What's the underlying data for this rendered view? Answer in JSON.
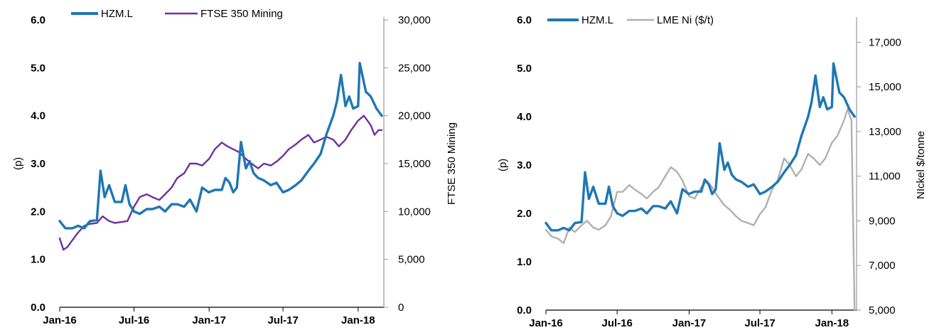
{
  "chart_data": [
    {
      "type": "line",
      "title": "",
      "xlabel": "",
      "ylabel_left": "(p)",
      "ylabel_right": "FTSE 350 Mining",
      "x_ticks": [
        "Jan-16",
        "Jul-16",
        "Jan-17",
        "Jul-17",
        "Jan-18"
      ],
      "y_left_ticks": [
        "0.0",
        "1.0",
        "2.0",
        "3.0",
        "4.0",
        "5.0",
        "6.0"
      ],
      "y_right_ticks": [
        "0",
        "5,000",
        "10,000",
        "15,000",
        "20,000",
        "25,000",
        "30,000"
      ],
      "ylim_left": [
        0,
        6
      ],
      "ylim_right": [
        0,
        30000
      ],
      "legend_position": "top",
      "series": [
        {
          "name": "HZM.L",
          "axis": "left",
          "color": "#1f77b4",
          "points": [
            [
              "2016-01-01",
              1.8
            ],
            [
              "2016-01-15",
              1.65
            ],
            [
              "2016-02-01",
              1.65
            ],
            [
              "2016-02-15",
              1.7
            ],
            [
              "2016-03-01",
              1.65
            ],
            [
              "2016-03-15",
              1.8
            ],
            [
              "2016-04-01",
              1.82
            ],
            [
              "2016-04-10",
              2.85
            ],
            [
              "2016-04-20",
              2.3
            ],
            [
              "2016-05-01",
              2.55
            ],
            [
              "2016-05-15",
              2.2
            ],
            [
              "2016-06-01",
              2.2
            ],
            [
              "2016-06-10",
              2.55
            ],
            [
              "2016-06-20",
              2.15
            ],
            [
              "2016-07-01",
              2.0
            ],
            [
              "2016-07-15",
              1.95
            ],
            [
              "2016-08-01",
              2.05
            ],
            [
              "2016-08-15",
              2.05
            ],
            [
              "2016-09-01",
              2.1
            ],
            [
              "2016-09-15",
              2.0
            ],
            [
              "2016-10-01",
              2.15
            ],
            [
              "2016-10-15",
              2.15
            ],
            [
              "2016-11-01",
              2.1
            ],
            [
              "2016-11-15",
              2.25
            ],
            [
              "2016-12-01",
              2.0
            ],
            [
              "2016-12-15",
              2.5
            ],
            [
              "2016-12-31",
              2.4
            ],
            [
              "2017-01-15",
              2.45
            ],
            [
              "2017-02-01",
              2.45
            ],
            [
              "2017-02-10",
              2.7
            ],
            [
              "2017-02-20",
              2.6
            ],
            [
              "2017-03-01",
              2.4
            ],
            [
              "2017-03-10",
              2.5
            ],
            [
              "2017-03-20",
              3.45
            ],
            [
              "2017-04-01",
              2.9
            ],
            [
              "2017-04-10",
              3.05
            ],
            [
              "2017-04-20",
              2.8
            ],
            [
              "2017-05-01",
              2.7
            ],
            [
              "2017-05-15",
              2.65
            ],
            [
              "2017-06-01",
              2.55
            ],
            [
              "2017-06-15",
              2.6
            ],
            [
              "2017-07-01",
              2.4
            ],
            [
              "2017-07-15",
              2.45
            ],
            [
              "2017-08-01",
              2.55
            ],
            [
              "2017-08-15",
              2.65
            ],
            [
              "2017-09-01",
              2.85
            ],
            [
              "2017-09-15",
              3.0
            ],
            [
              "2017-10-01",
              3.2
            ],
            [
              "2017-10-15",
              3.6
            ],
            [
              "2017-11-01",
              4.0
            ],
            [
              "2017-11-10",
              4.3
            ],
            [
              "2017-11-20",
              4.85
            ],
            [
              "2017-12-01",
              4.2
            ],
            [
              "2017-12-10",
              4.4
            ],
            [
              "2017-12-20",
              4.15
            ],
            [
              "2018-01-01",
              4.2
            ],
            [
              "2018-01-05",
              5.1
            ],
            [
              "2018-01-10",
              4.9
            ],
            [
              "2018-01-20",
              4.5
            ],
            [
              "2018-02-01",
              4.4
            ],
            [
              "2018-02-15",
              4.15
            ],
            [
              "2018-02-28",
              4.0
            ]
          ]
        },
        {
          "name": "FTSE 350 Mining",
          "axis": "right",
          "color": "#7030a0",
          "points": [
            [
              "2016-01-01",
              7200
            ],
            [
              "2016-01-10",
              6000
            ],
            [
              "2016-01-20",
              6300
            ],
            [
              "2016-02-01",
              7000
            ],
            [
              "2016-02-15",
              7800
            ],
            [
              "2016-03-01",
              8500
            ],
            [
              "2016-03-15",
              8700
            ],
            [
              "2016-04-01",
              8800
            ],
            [
              "2016-04-15",
              9500
            ],
            [
              "2016-05-01",
              9000
            ],
            [
              "2016-05-15",
              8800
            ],
            [
              "2016-06-01",
              8900
            ],
            [
              "2016-06-15",
              9000
            ],
            [
              "2016-07-01",
              10500
            ],
            [
              "2016-07-15",
              11500
            ],
            [
              "2016-08-01",
              11800
            ],
            [
              "2016-08-15",
              11500
            ],
            [
              "2016-09-01",
              11200
            ],
            [
              "2016-09-15",
              11800
            ],
            [
              "2016-10-01",
              12500
            ],
            [
              "2016-10-15",
              13500
            ],
            [
              "2016-11-01",
              14000
            ],
            [
              "2016-11-15",
              15000
            ],
            [
              "2016-12-01",
              15000
            ],
            [
              "2016-12-15",
              14800
            ],
            [
              "2017-01-01",
              15500
            ],
            [
              "2017-01-15",
              16500
            ],
            [
              "2017-02-01",
              17200
            ],
            [
              "2017-02-15",
              16800
            ],
            [
              "2017-03-01",
              16500
            ],
            [
              "2017-03-15",
              16200
            ],
            [
              "2017-04-01",
              15500
            ],
            [
              "2017-04-15",
              15000
            ],
            [
              "2017-05-01",
              14500
            ],
            [
              "2017-05-15",
              15000
            ],
            [
              "2017-06-01",
              14800
            ],
            [
              "2017-06-15",
              15200
            ],
            [
              "2017-07-01",
              15800
            ],
            [
              "2017-07-15",
              16500
            ],
            [
              "2017-08-01",
              17000
            ],
            [
              "2017-08-15",
              17500
            ],
            [
              "2017-09-01",
              18000
            ],
            [
              "2017-09-15",
              17200
            ],
            [
              "2017-10-01",
              17500
            ],
            [
              "2017-10-15",
              17800
            ],
            [
              "2017-11-01",
              17500
            ],
            [
              "2017-11-15",
              16800
            ],
            [
              "2017-12-01",
              17500
            ],
            [
              "2017-12-15",
              18500
            ],
            [
              "2018-01-01",
              19500
            ],
            [
              "2018-01-15",
              20000
            ],
            [
              "2018-02-01",
              19000
            ],
            [
              "2018-02-10",
              18000
            ],
            [
              "2018-02-20",
              18500
            ],
            [
              "2018-02-28",
              18500
            ]
          ]
        }
      ]
    },
    {
      "type": "line",
      "title": "",
      "xlabel": "",
      "ylabel_left": "(p)",
      "ylabel_right": "NIckel $/tonne",
      "x_ticks": [
        "Jan-16",
        "Jul-16",
        "Jan-17",
        "Jul-17",
        "Jan-18"
      ],
      "y_left_ticks": [
        "0.0",
        "1.0",
        "2.0",
        "3.0",
        "4.0",
        "5.0",
        "6.0"
      ],
      "y_right_ticks": [
        "5,000",
        "7,000",
        "9,000",
        "11,000",
        "13,000",
        "15,000",
        "17,000"
      ],
      "ylim_left": [
        0,
        6
      ],
      "ylim_right": [
        5000,
        18000
      ],
      "legend_position": "top",
      "series": [
        {
          "name": "HZM.L",
          "axis": "left",
          "color": "#1f77b4",
          "points": [
            [
              "2016-01-01",
              1.8
            ],
            [
              "2016-01-15",
              1.65
            ],
            [
              "2016-02-01",
              1.65
            ],
            [
              "2016-02-15",
              1.7
            ],
            [
              "2016-03-01",
              1.65
            ],
            [
              "2016-03-15",
              1.8
            ],
            [
              "2016-04-01",
              1.82
            ],
            [
              "2016-04-10",
              2.85
            ],
            [
              "2016-04-20",
              2.3
            ],
            [
              "2016-05-01",
              2.55
            ],
            [
              "2016-05-15",
              2.2
            ],
            [
              "2016-06-01",
              2.2
            ],
            [
              "2016-06-10",
              2.55
            ],
            [
              "2016-06-20",
              2.15
            ],
            [
              "2016-07-01",
              2.0
            ],
            [
              "2016-07-15",
              1.95
            ],
            [
              "2016-08-01",
              2.05
            ],
            [
              "2016-08-15",
              2.05
            ],
            [
              "2016-09-01",
              2.1
            ],
            [
              "2016-09-15",
              2.0
            ],
            [
              "2016-10-01",
              2.15
            ],
            [
              "2016-10-15",
              2.15
            ],
            [
              "2016-11-01",
              2.1
            ],
            [
              "2016-11-15",
              2.25
            ],
            [
              "2016-12-01",
              2.0
            ],
            [
              "2016-12-15",
              2.5
            ],
            [
              "2016-12-31",
              2.4
            ],
            [
              "2017-01-15",
              2.45
            ],
            [
              "2017-02-01",
              2.45
            ],
            [
              "2017-02-10",
              2.7
            ],
            [
              "2017-02-20",
              2.6
            ],
            [
              "2017-03-01",
              2.4
            ],
            [
              "2017-03-10",
              2.5
            ],
            [
              "2017-03-20",
              3.45
            ],
            [
              "2017-04-01",
              2.9
            ],
            [
              "2017-04-10",
              3.05
            ],
            [
              "2017-04-20",
              2.8
            ],
            [
              "2017-05-01",
              2.7
            ],
            [
              "2017-05-15",
              2.65
            ],
            [
              "2017-06-01",
              2.55
            ],
            [
              "2017-06-15",
              2.6
            ],
            [
              "2017-07-01",
              2.4
            ],
            [
              "2017-07-15",
              2.45
            ],
            [
              "2017-08-01",
              2.55
            ],
            [
              "2017-08-15",
              2.65
            ],
            [
              "2017-09-01",
              2.85
            ],
            [
              "2017-09-15",
              3.0
            ],
            [
              "2017-10-01",
              3.2
            ],
            [
              "2017-10-15",
              3.6
            ],
            [
              "2017-11-01",
              4.0
            ],
            [
              "2017-11-10",
              4.3
            ],
            [
              "2017-11-20",
              4.85
            ],
            [
              "2017-12-01",
              4.2
            ],
            [
              "2017-12-10",
              4.4
            ],
            [
              "2017-12-20",
              4.15
            ],
            [
              "2018-01-01",
              4.2
            ],
            [
              "2018-01-05",
              5.1
            ],
            [
              "2018-01-10",
              4.9
            ],
            [
              "2018-01-20",
              4.5
            ],
            [
              "2018-02-01",
              4.4
            ],
            [
              "2018-02-15",
              4.15
            ],
            [
              "2018-02-28",
              4.0
            ]
          ]
        },
        {
          "name": "LME Ni ($/t)",
          "axis": "right",
          "color": "#b0b0b0",
          "points": [
            [
              "2016-01-01",
              8600
            ],
            [
              "2016-01-15",
              8300
            ],
            [
              "2016-02-01",
              8200
            ],
            [
              "2016-02-15",
              8000
            ],
            [
              "2016-03-01",
              8700
            ],
            [
              "2016-03-15",
              8500
            ],
            [
              "2016-04-01",
              8800
            ],
            [
              "2016-04-15",
              9000
            ],
            [
              "2016-05-01",
              8700
            ],
            [
              "2016-05-15",
              8600
            ],
            [
              "2016-06-01",
              8800
            ],
            [
              "2016-06-15",
              9200
            ],
            [
              "2016-07-01",
              10300
            ],
            [
              "2016-07-15",
              10300
            ],
            [
              "2016-08-01",
              10600
            ],
            [
              "2016-08-15",
              10400
            ],
            [
              "2016-09-01",
              10200
            ],
            [
              "2016-09-15",
              10000
            ],
            [
              "2016-10-01",
              10300
            ],
            [
              "2016-10-15",
              10500
            ],
            [
              "2016-11-01",
              11000
            ],
            [
              "2016-11-15",
              11400
            ],
            [
              "2016-12-01",
              11200
            ],
            [
              "2016-12-15",
              10800
            ],
            [
              "2017-01-01",
              10100
            ],
            [
              "2017-01-15",
              10000
            ],
            [
              "2017-02-01",
              10500
            ],
            [
              "2017-02-15",
              10800
            ],
            [
              "2017-03-01",
              10500
            ],
            [
              "2017-03-15",
              10100
            ],
            [
              "2017-04-01",
              9700
            ],
            [
              "2017-04-15",
              9500
            ],
            [
              "2017-05-01",
              9200
            ],
            [
              "2017-05-15",
              9000
            ],
            [
              "2017-06-01",
              8900
            ],
            [
              "2017-06-15",
              8800
            ],
            [
              "2017-07-01",
              9300
            ],
            [
              "2017-07-15",
              9600
            ],
            [
              "2017-08-01",
              10400
            ],
            [
              "2017-08-15",
              10800
            ],
            [
              "2017-09-01",
              11800
            ],
            [
              "2017-09-15",
              11500
            ],
            [
              "2017-10-01",
              11000
            ],
            [
              "2017-10-15",
              11300
            ],
            [
              "2017-11-01",
              12000
            ],
            [
              "2017-11-15",
              11800
            ],
            [
              "2017-12-01",
              11500
            ],
            [
              "2017-12-15",
              11800
            ],
            [
              "2018-01-01",
              12500
            ],
            [
              "2018-01-15",
              12800
            ],
            [
              "2018-02-01",
              13500
            ],
            [
              "2018-02-10",
              14000
            ],
            [
              "2018-02-20",
              13500
            ],
            [
              "2018-02-28",
              5000
            ]
          ]
        }
      ]
    }
  ]
}
